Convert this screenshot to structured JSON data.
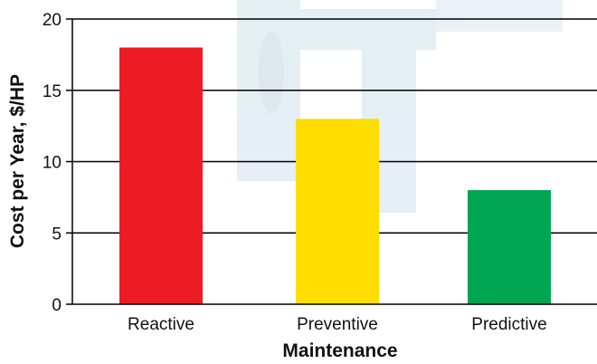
{
  "chart_data": {
    "type": "bar",
    "categories": [
      "Reactive",
      "Preventive",
      "Predictive"
    ],
    "values": [
      18,
      13,
      8
    ],
    "colors": [
      "#ed1c24",
      "#ffdd00",
      "#00a651"
    ],
    "xlabel": "Maintenance",
    "ylabel": "Cost per Year, $/HP",
    "ylim": [
      0,
      20
    ],
    "yticks": [
      0,
      5,
      10,
      15,
      20
    ],
    "grid": true,
    "grid_axis": "y",
    "legend": "none",
    "background": "faint watermark image of a motor/pump behind the bars"
  }
}
